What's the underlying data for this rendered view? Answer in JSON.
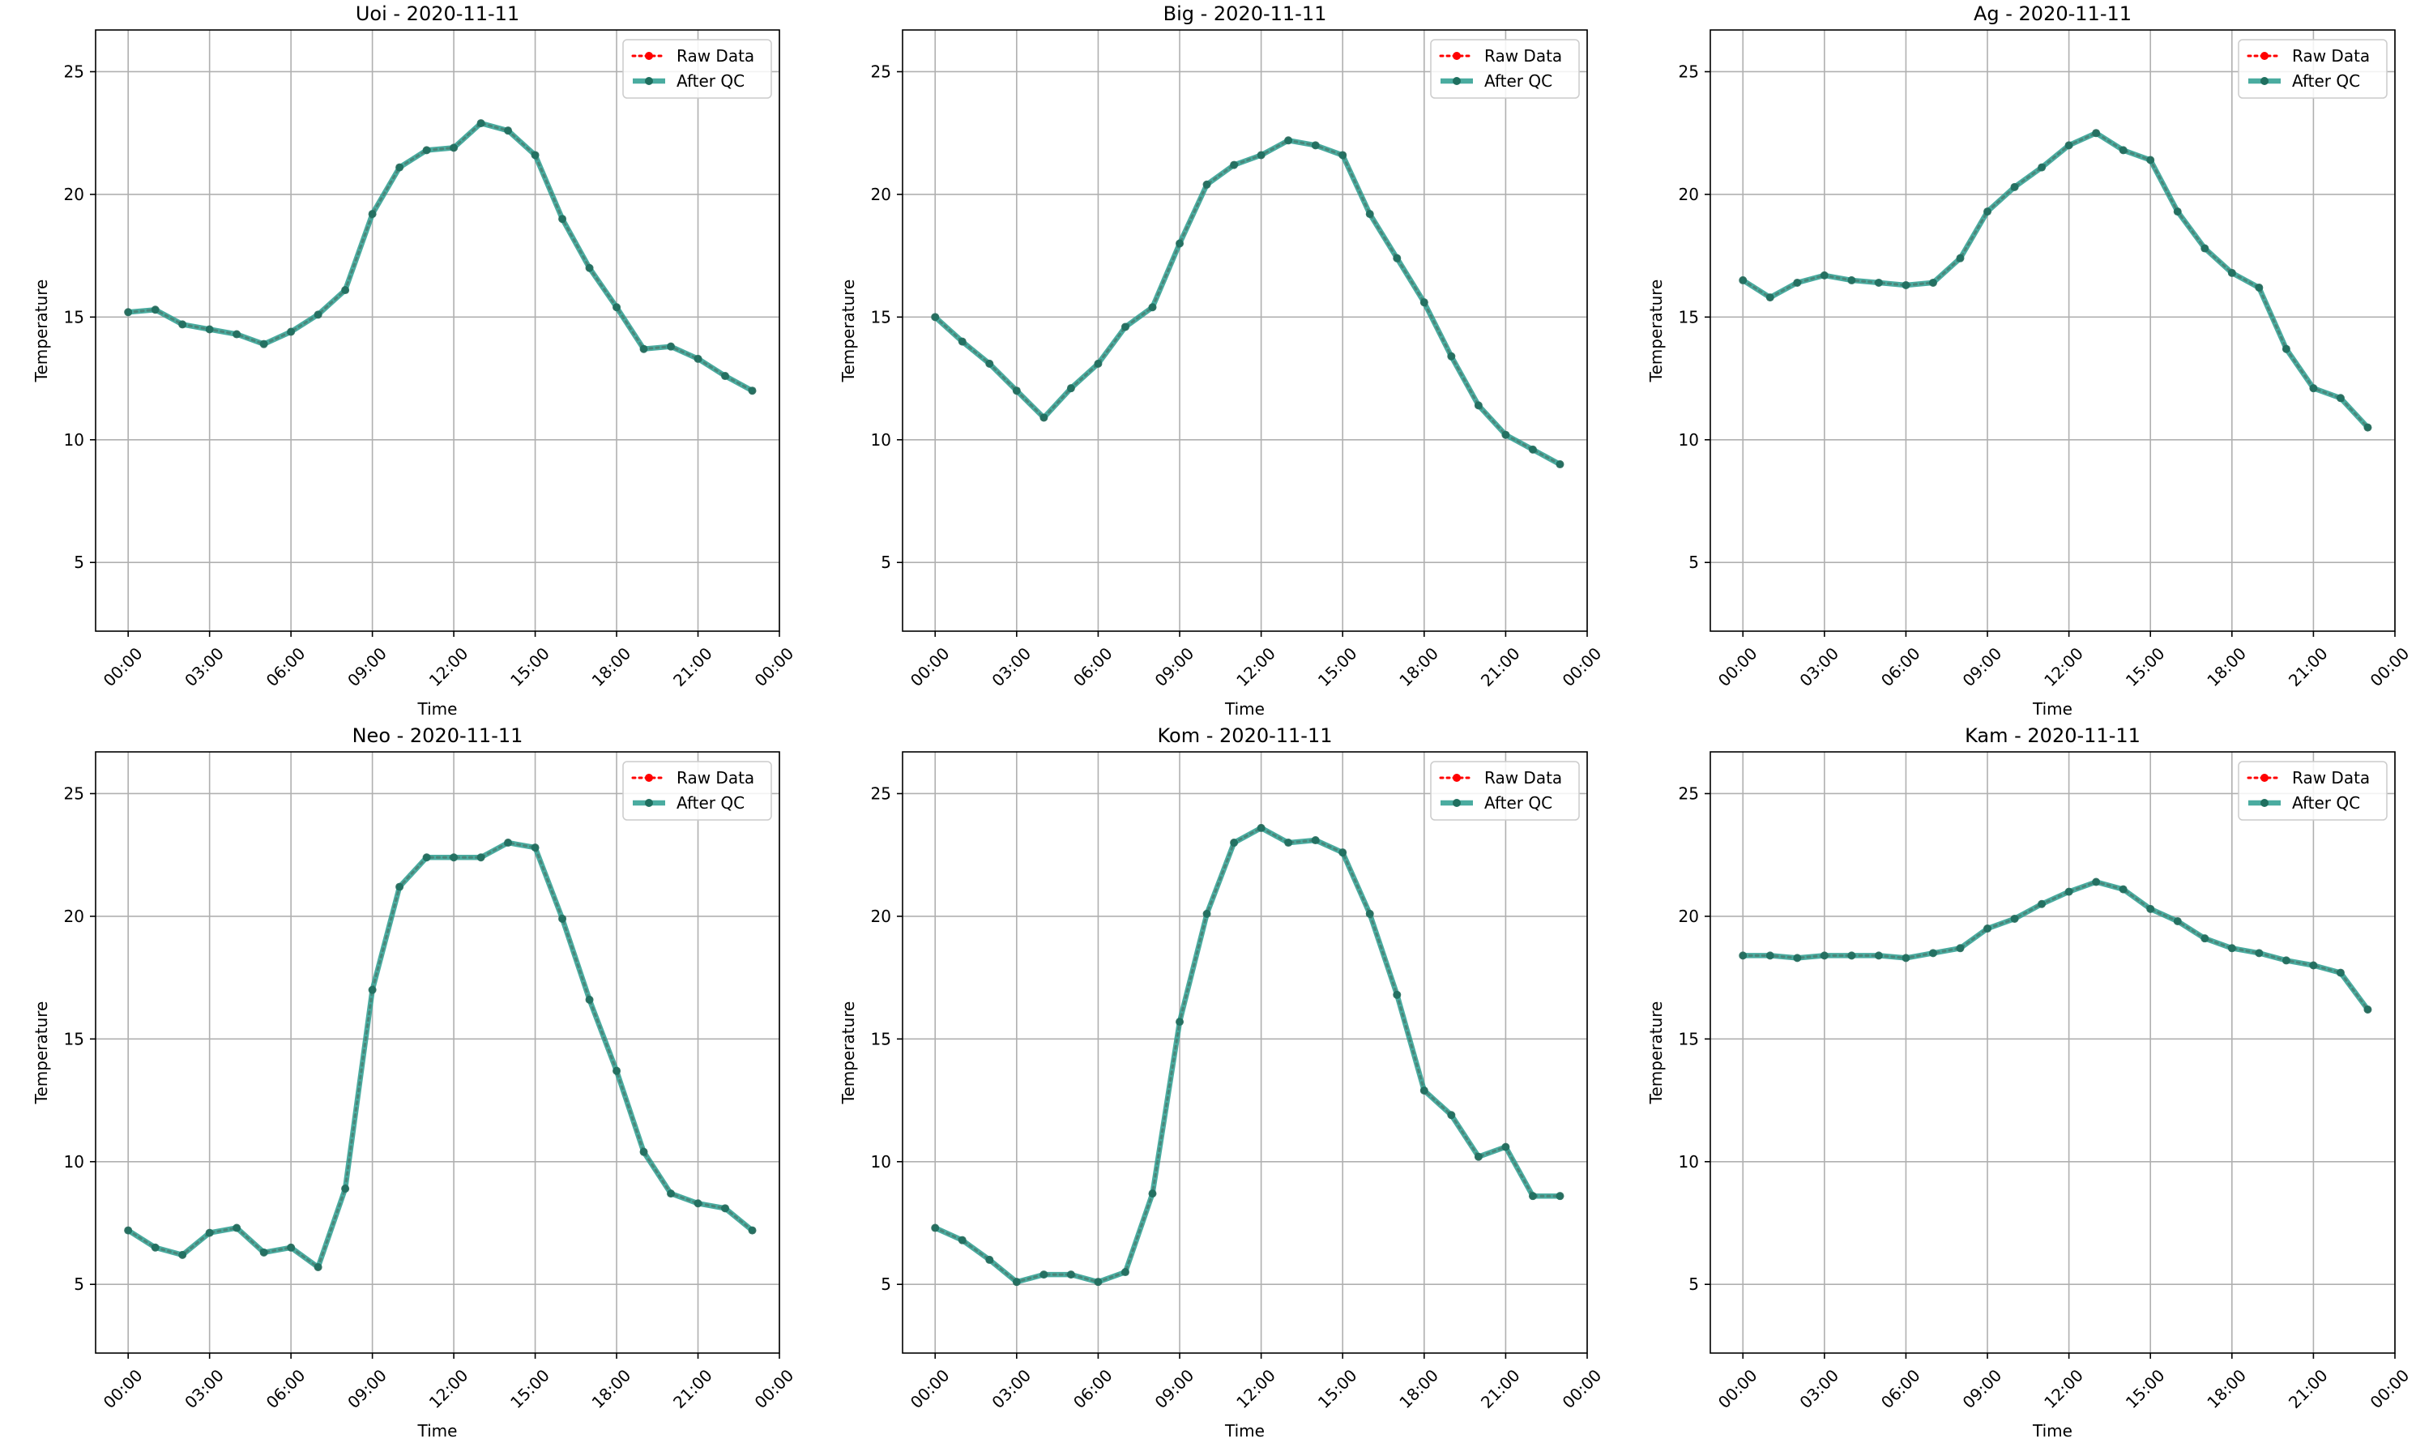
{
  "figure": {
    "description": "Six station temperature panels comparing raw data and quality-controlled data"
  },
  "chart_data": [
    {
      "type": "line",
      "title": "Uoi - 2020-11-11",
      "xlabel": "Time",
      "ylabel": "Temperature",
      "x_tick_labels": [
        "00:00",
        "03:00",
        "06:00",
        "09:00",
        "12:00",
        "15:00",
        "18:00",
        "21:00",
        "00:00"
      ],
      "y_ticks": [
        5,
        10,
        15,
        20,
        25
      ],
      "ylim": [
        2.2,
        26.7
      ],
      "xlim_hours": [
        -1.2,
        24.0
      ],
      "grid": true,
      "legend_position": "top-right",
      "x_hours": [
        0,
        1,
        2,
        3,
        4,
        5,
        6,
        7,
        8,
        9,
        10,
        11,
        12,
        13,
        14,
        15,
        16,
        17,
        18,
        19,
        20,
        21,
        22,
        23
      ],
      "series": [
        {
          "name": "Raw Data",
          "color": "#ff0000",
          "style": "dotted",
          "values": [
            15.2,
            15.3,
            14.7,
            14.5,
            14.3,
            13.9,
            14.4,
            15.1,
            16.1,
            19.2,
            21.1,
            21.8,
            21.9,
            22.9,
            22.6,
            21.6,
            19.0,
            17.0,
            15.4,
            13.7,
            13.8,
            13.3,
            12.6,
            12.0
          ]
        },
        {
          "name": "After QC",
          "color": "#2a9d8f",
          "style": "solid",
          "values": [
            15.2,
            15.3,
            14.7,
            14.5,
            14.3,
            13.9,
            14.4,
            15.1,
            16.1,
            19.2,
            21.1,
            21.8,
            21.9,
            22.9,
            22.6,
            21.6,
            19.0,
            17.0,
            15.4,
            13.7,
            13.8,
            13.3,
            12.6,
            12.0
          ]
        }
      ]
    },
    {
      "type": "line",
      "title": "Big - 2020-11-11",
      "xlabel": "Time",
      "ylabel": "Temperature",
      "x_tick_labels": [
        "00:00",
        "03:00",
        "06:00",
        "09:00",
        "12:00",
        "15:00",
        "18:00",
        "21:00",
        "00:00"
      ],
      "y_ticks": [
        5,
        10,
        15,
        20,
        25
      ],
      "ylim": [
        2.2,
        26.7
      ],
      "xlim_hours": [
        -1.2,
        24.0
      ],
      "grid": true,
      "legend_position": "top-right",
      "x_hours": [
        0,
        1,
        2,
        3,
        4,
        5,
        6,
        7,
        8,
        9,
        10,
        11,
        12,
        13,
        14,
        15,
        16,
        17,
        18,
        19,
        20,
        21,
        22,
        23
      ],
      "series": [
        {
          "name": "Raw Data",
          "color": "#ff0000",
          "style": "dotted",
          "values": [
            15.0,
            14.0,
            13.1,
            12.0,
            10.9,
            12.1,
            13.1,
            14.6,
            15.4,
            18.0,
            20.4,
            21.2,
            21.6,
            22.2,
            22.0,
            21.6,
            19.2,
            17.4,
            15.6,
            13.4,
            11.4,
            10.2,
            9.6,
            9.0
          ]
        },
        {
          "name": "After QC",
          "color": "#2a9d8f",
          "style": "solid",
          "values": [
            15.0,
            14.0,
            13.1,
            12.0,
            10.9,
            12.1,
            13.1,
            14.6,
            15.4,
            18.0,
            20.4,
            21.2,
            21.6,
            22.2,
            22.0,
            21.6,
            19.2,
            17.4,
            15.6,
            13.4,
            11.4,
            10.2,
            9.6,
            9.0
          ]
        }
      ]
    },
    {
      "type": "line",
      "title": "Ag - 2020-11-11",
      "xlabel": "Time",
      "ylabel": "Temperature",
      "x_tick_labels": [
        "00:00",
        "03:00",
        "06:00",
        "09:00",
        "12:00",
        "15:00",
        "18:00",
        "21:00",
        "00:00"
      ],
      "y_ticks": [
        5,
        10,
        15,
        20,
        25
      ],
      "ylim": [
        2.2,
        26.7
      ],
      "xlim_hours": [
        -1.2,
        24.0
      ],
      "grid": true,
      "legend_position": "top-right",
      "x_hours": [
        0,
        1,
        2,
        3,
        4,
        5,
        6,
        7,
        8,
        9,
        10,
        11,
        12,
        13,
        14,
        15,
        16,
        17,
        18,
        19,
        20,
        21,
        22,
        23
      ],
      "series": [
        {
          "name": "Raw Data",
          "color": "#ff0000",
          "style": "dotted",
          "values": [
            16.5,
            15.8,
            16.4,
            16.7,
            16.5,
            16.4,
            16.3,
            16.4,
            17.4,
            19.3,
            20.3,
            21.1,
            22.0,
            22.5,
            21.8,
            21.4,
            19.3,
            17.8,
            16.8,
            16.2,
            13.7,
            12.1,
            11.7,
            10.5
          ]
        },
        {
          "name": "After QC",
          "color": "#2a9d8f",
          "style": "solid",
          "values": [
            16.5,
            15.8,
            16.4,
            16.7,
            16.5,
            16.4,
            16.3,
            16.4,
            17.4,
            19.3,
            20.3,
            21.1,
            22.0,
            22.5,
            21.8,
            21.4,
            19.3,
            17.8,
            16.8,
            16.2,
            13.7,
            12.1,
            11.7,
            10.5
          ]
        }
      ]
    },
    {
      "type": "line",
      "title": "Neo - 2020-11-11",
      "xlabel": "Time",
      "ylabel": "Temperature",
      "x_tick_labels": [
        "00:00",
        "03:00",
        "06:00",
        "09:00",
        "12:00",
        "15:00",
        "18:00",
        "21:00",
        "00:00"
      ],
      "y_ticks": [
        5,
        10,
        15,
        20,
        25
      ],
      "ylim": [
        2.2,
        26.7
      ],
      "xlim_hours": [
        -1.2,
        24.0
      ],
      "grid": true,
      "legend_position": "top-right",
      "x_hours": [
        0,
        1,
        2,
        3,
        4,
        5,
        6,
        7,
        8,
        9,
        10,
        11,
        12,
        13,
        14,
        15,
        16,
        17,
        18,
        19,
        20,
        21,
        22,
        23
      ],
      "series": [
        {
          "name": "Raw Data",
          "color": "#ff0000",
          "style": "dotted",
          "values": [
            7.2,
            6.5,
            6.2,
            7.1,
            7.3,
            6.3,
            6.5,
            5.7,
            8.9,
            17.0,
            21.2,
            22.4,
            22.4,
            22.4,
            23.0,
            22.8,
            19.9,
            16.6,
            13.7,
            10.4,
            8.7,
            8.3,
            8.1,
            7.2
          ]
        },
        {
          "name": "After QC",
          "color": "#2a9d8f",
          "style": "solid",
          "values": [
            7.2,
            6.5,
            6.2,
            7.1,
            7.3,
            6.3,
            6.5,
            5.7,
            8.9,
            17.0,
            21.2,
            22.4,
            22.4,
            22.4,
            23.0,
            22.8,
            19.9,
            16.6,
            13.7,
            10.4,
            8.7,
            8.3,
            8.1,
            7.2
          ]
        }
      ]
    },
    {
      "type": "line",
      "title": "Kom - 2020-11-11",
      "xlabel": "Time",
      "ylabel": "Temperature",
      "x_tick_labels": [
        "00:00",
        "03:00",
        "06:00",
        "09:00",
        "12:00",
        "15:00",
        "18:00",
        "21:00",
        "00:00"
      ],
      "y_ticks": [
        5,
        10,
        15,
        20,
        25
      ],
      "ylim": [
        2.2,
        26.7
      ],
      "xlim_hours": [
        -1.2,
        24.0
      ],
      "grid": true,
      "legend_position": "top-right",
      "x_hours": [
        0,
        1,
        2,
        3,
        4,
        5,
        6,
        7,
        8,
        9,
        10,
        11,
        12,
        13,
        14,
        15,
        16,
        17,
        18,
        19,
        20,
        21,
        22,
        23
      ],
      "series": [
        {
          "name": "Raw Data",
          "color": "#ff0000",
          "style": "dotted",
          "values": [
            7.3,
            6.8,
            6.0,
            5.1,
            5.4,
            5.4,
            5.1,
            5.5,
            8.7,
            15.7,
            20.1,
            23.0,
            23.6,
            23.0,
            23.1,
            22.6,
            20.1,
            16.8,
            12.9,
            11.9,
            10.2,
            10.6,
            8.6,
            8.6
          ]
        },
        {
          "name": "After QC",
          "color": "#2a9d8f",
          "style": "solid",
          "values": [
            7.3,
            6.8,
            6.0,
            5.1,
            5.4,
            5.4,
            5.1,
            5.5,
            8.7,
            15.7,
            20.1,
            23.0,
            23.6,
            23.0,
            23.1,
            22.6,
            20.1,
            16.8,
            12.9,
            11.9,
            10.2,
            10.6,
            8.6,
            8.6
          ]
        }
      ]
    },
    {
      "type": "line",
      "title": "Kam - 2020-11-11",
      "xlabel": "Time",
      "ylabel": "Temperature",
      "x_tick_labels": [
        "00:00",
        "03:00",
        "06:00",
        "09:00",
        "12:00",
        "15:00",
        "18:00",
        "21:00",
        "00:00"
      ],
      "y_ticks": [
        5,
        10,
        15,
        20,
        25
      ],
      "ylim": [
        2.2,
        26.7
      ],
      "xlim_hours": [
        -1.2,
        24.0
      ],
      "grid": true,
      "legend_position": "top-right",
      "x_hours": [
        0,
        1,
        2,
        3,
        4,
        5,
        6,
        7,
        8,
        9,
        10,
        11,
        12,
        13,
        14,
        15,
        16,
        17,
        18,
        19,
        20,
        21,
        22,
        23
      ],
      "series": [
        {
          "name": "Raw Data",
          "color": "#ff0000",
          "style": "dotted",
          "values": [
            18.4,
            18.4,
            18.3,
            18.4,
            18.4,
            18.4,
            18.3,
            18.5,
            18.7,
            19.5,
            19.9,
            20.5,
            21.0,
            21.4,
            21.1,
            20.3,
            19.8,
            19.1,
            18.7,
            18.5,
            18.2,
            18.0,
            17.7,
            16.2
          ]
        },
        {
          "name": "After QC",
          "color": "#2a9d8f",
          "style": "solid",
          "values": [
            18.4,
            18.4,
            18.3,
            18.4,
            18.4,
            18.4,
            18.3,
            18.5,
            18.7,
            19.5,
            19.9,
            20.5,
            21.0,
            21.4,
            21.1,
            20.3,
            19.8,
            19.1,
            18.7,
            18.5,
            18.2,
            18.0,
            17.7,
            16.2
          ]
        }
      ]
    }
  ]
}
